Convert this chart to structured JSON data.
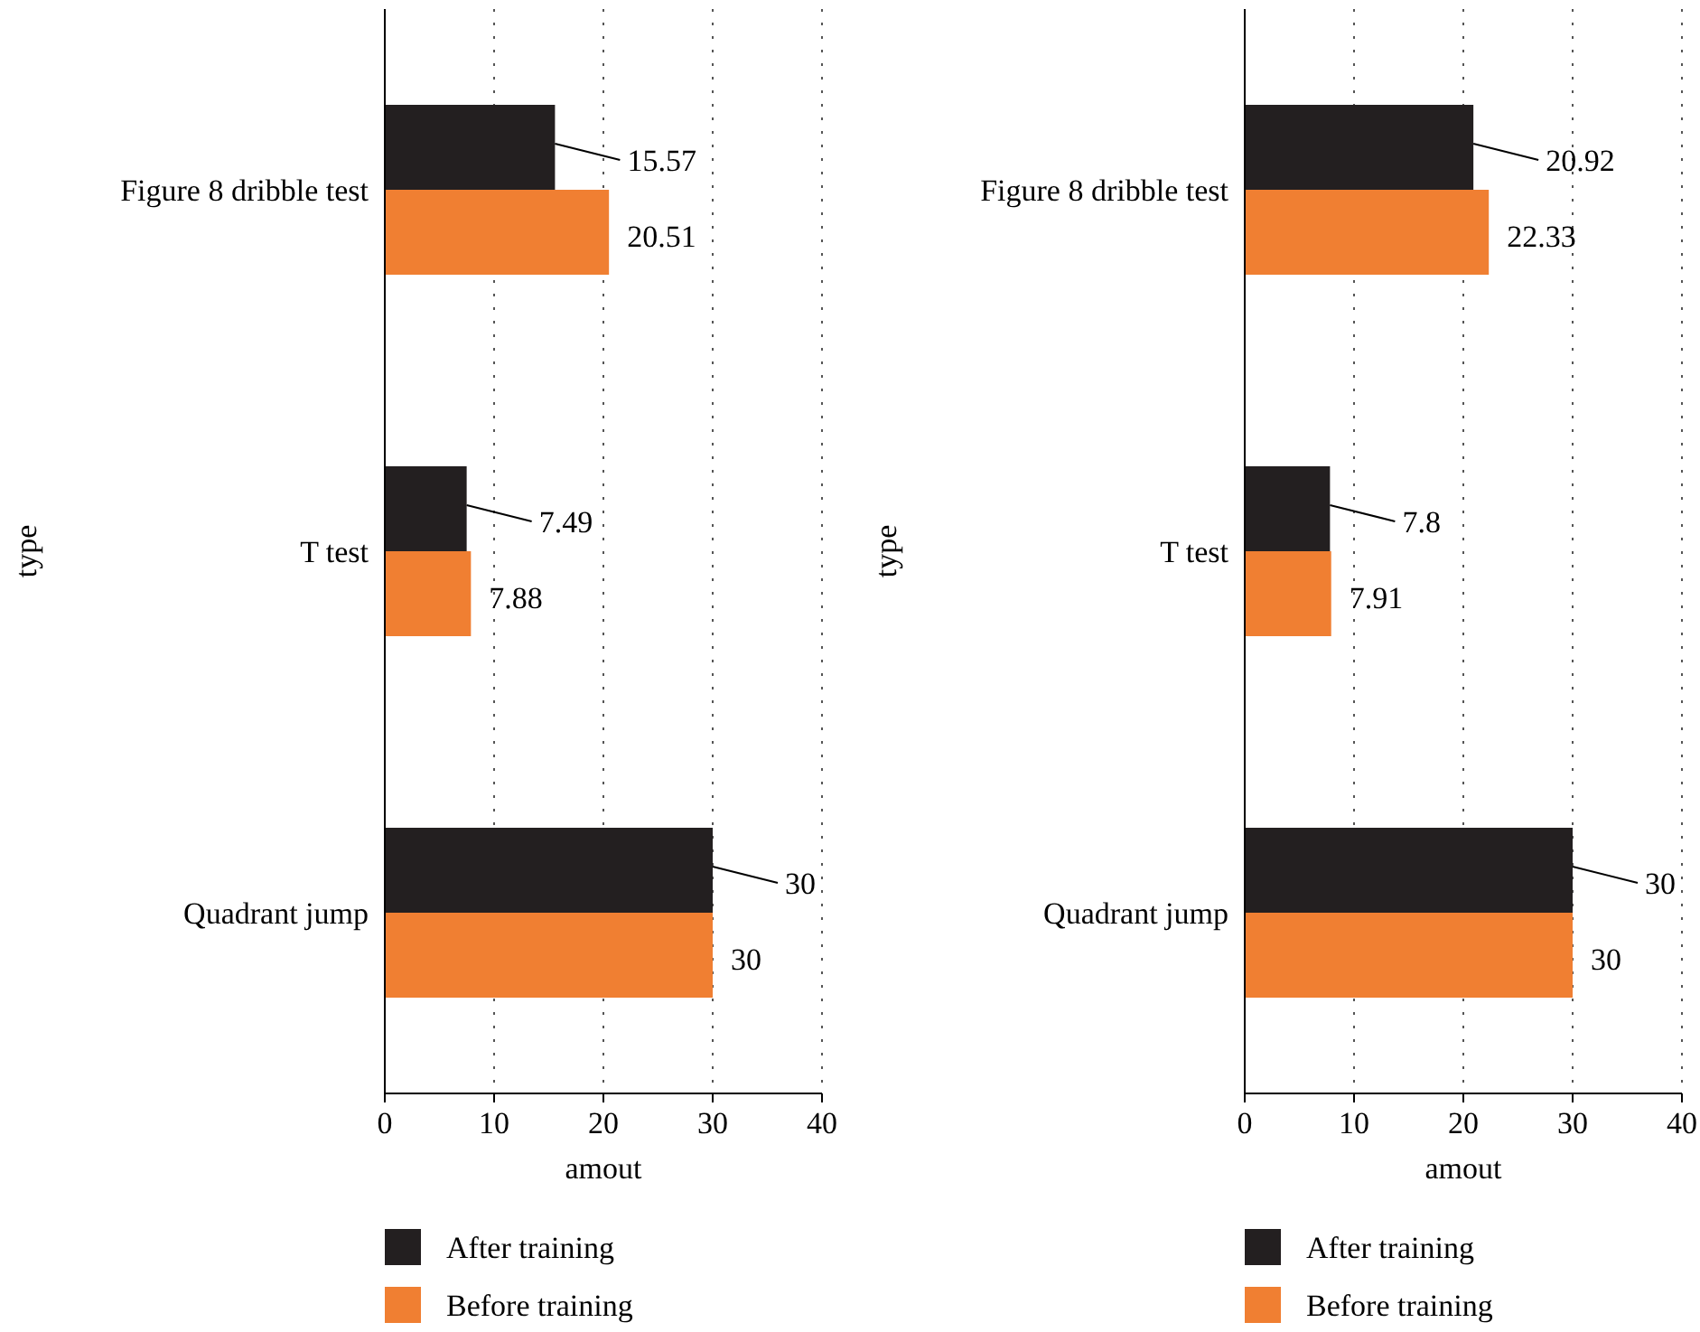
{
  "chart_data": [
    {
      "type": "bar",
      "orientation": "horizontal",
      "categories": [
        "Figure 8 dribble test",
        "T test",
        "Quadrant jump"
      ],
      "xlabel": "amout",
      "ylabel": "type",
      "xlim": [
        0,
        40
      ],
      "xticks": [
        0,
        10,
        20,
        30,
        40
      ],
      "grid": "x",
      "legend": "bottom",
      "data_labels": true,
      "series": [
        {
          "name": "After training",
          "color": "#231f20",
          "values": [
            15.57,
            7.49,
            30
          ]
        },
        {
          "name": "Before training",
          "color": "#f07f32",
          "values": [
            20.51,
            7.88,
            30
          ]
        }
      ]
    },
    {
      "type": "bar",
      "orientation": "horizontal",
      "categories": [
        "Figure 8 dribble test",
        "T test",
        "Quadrant jump"
      ],
      "xlabel": "amout",
      "ylabel": "type",
      "xlim": [
        0,
        40
      ],
      "xticks": [
        0,
        10,
        20,
        30,
        40
      ],
      "grid": "x",
      "legend": "bottom",
      "data_labels": true,
      "series": [
        {
          "name": "After training",
          "color": "#231f20",
          "values": [
            20.92,
            7.8,
            30
          ]
        },
        {
          "name": "Before training",
          "color": "#f07f32",
          "values": [
            22.33,
            7.91,
            30
          ]
        }
      ]
    }
  ]
}
